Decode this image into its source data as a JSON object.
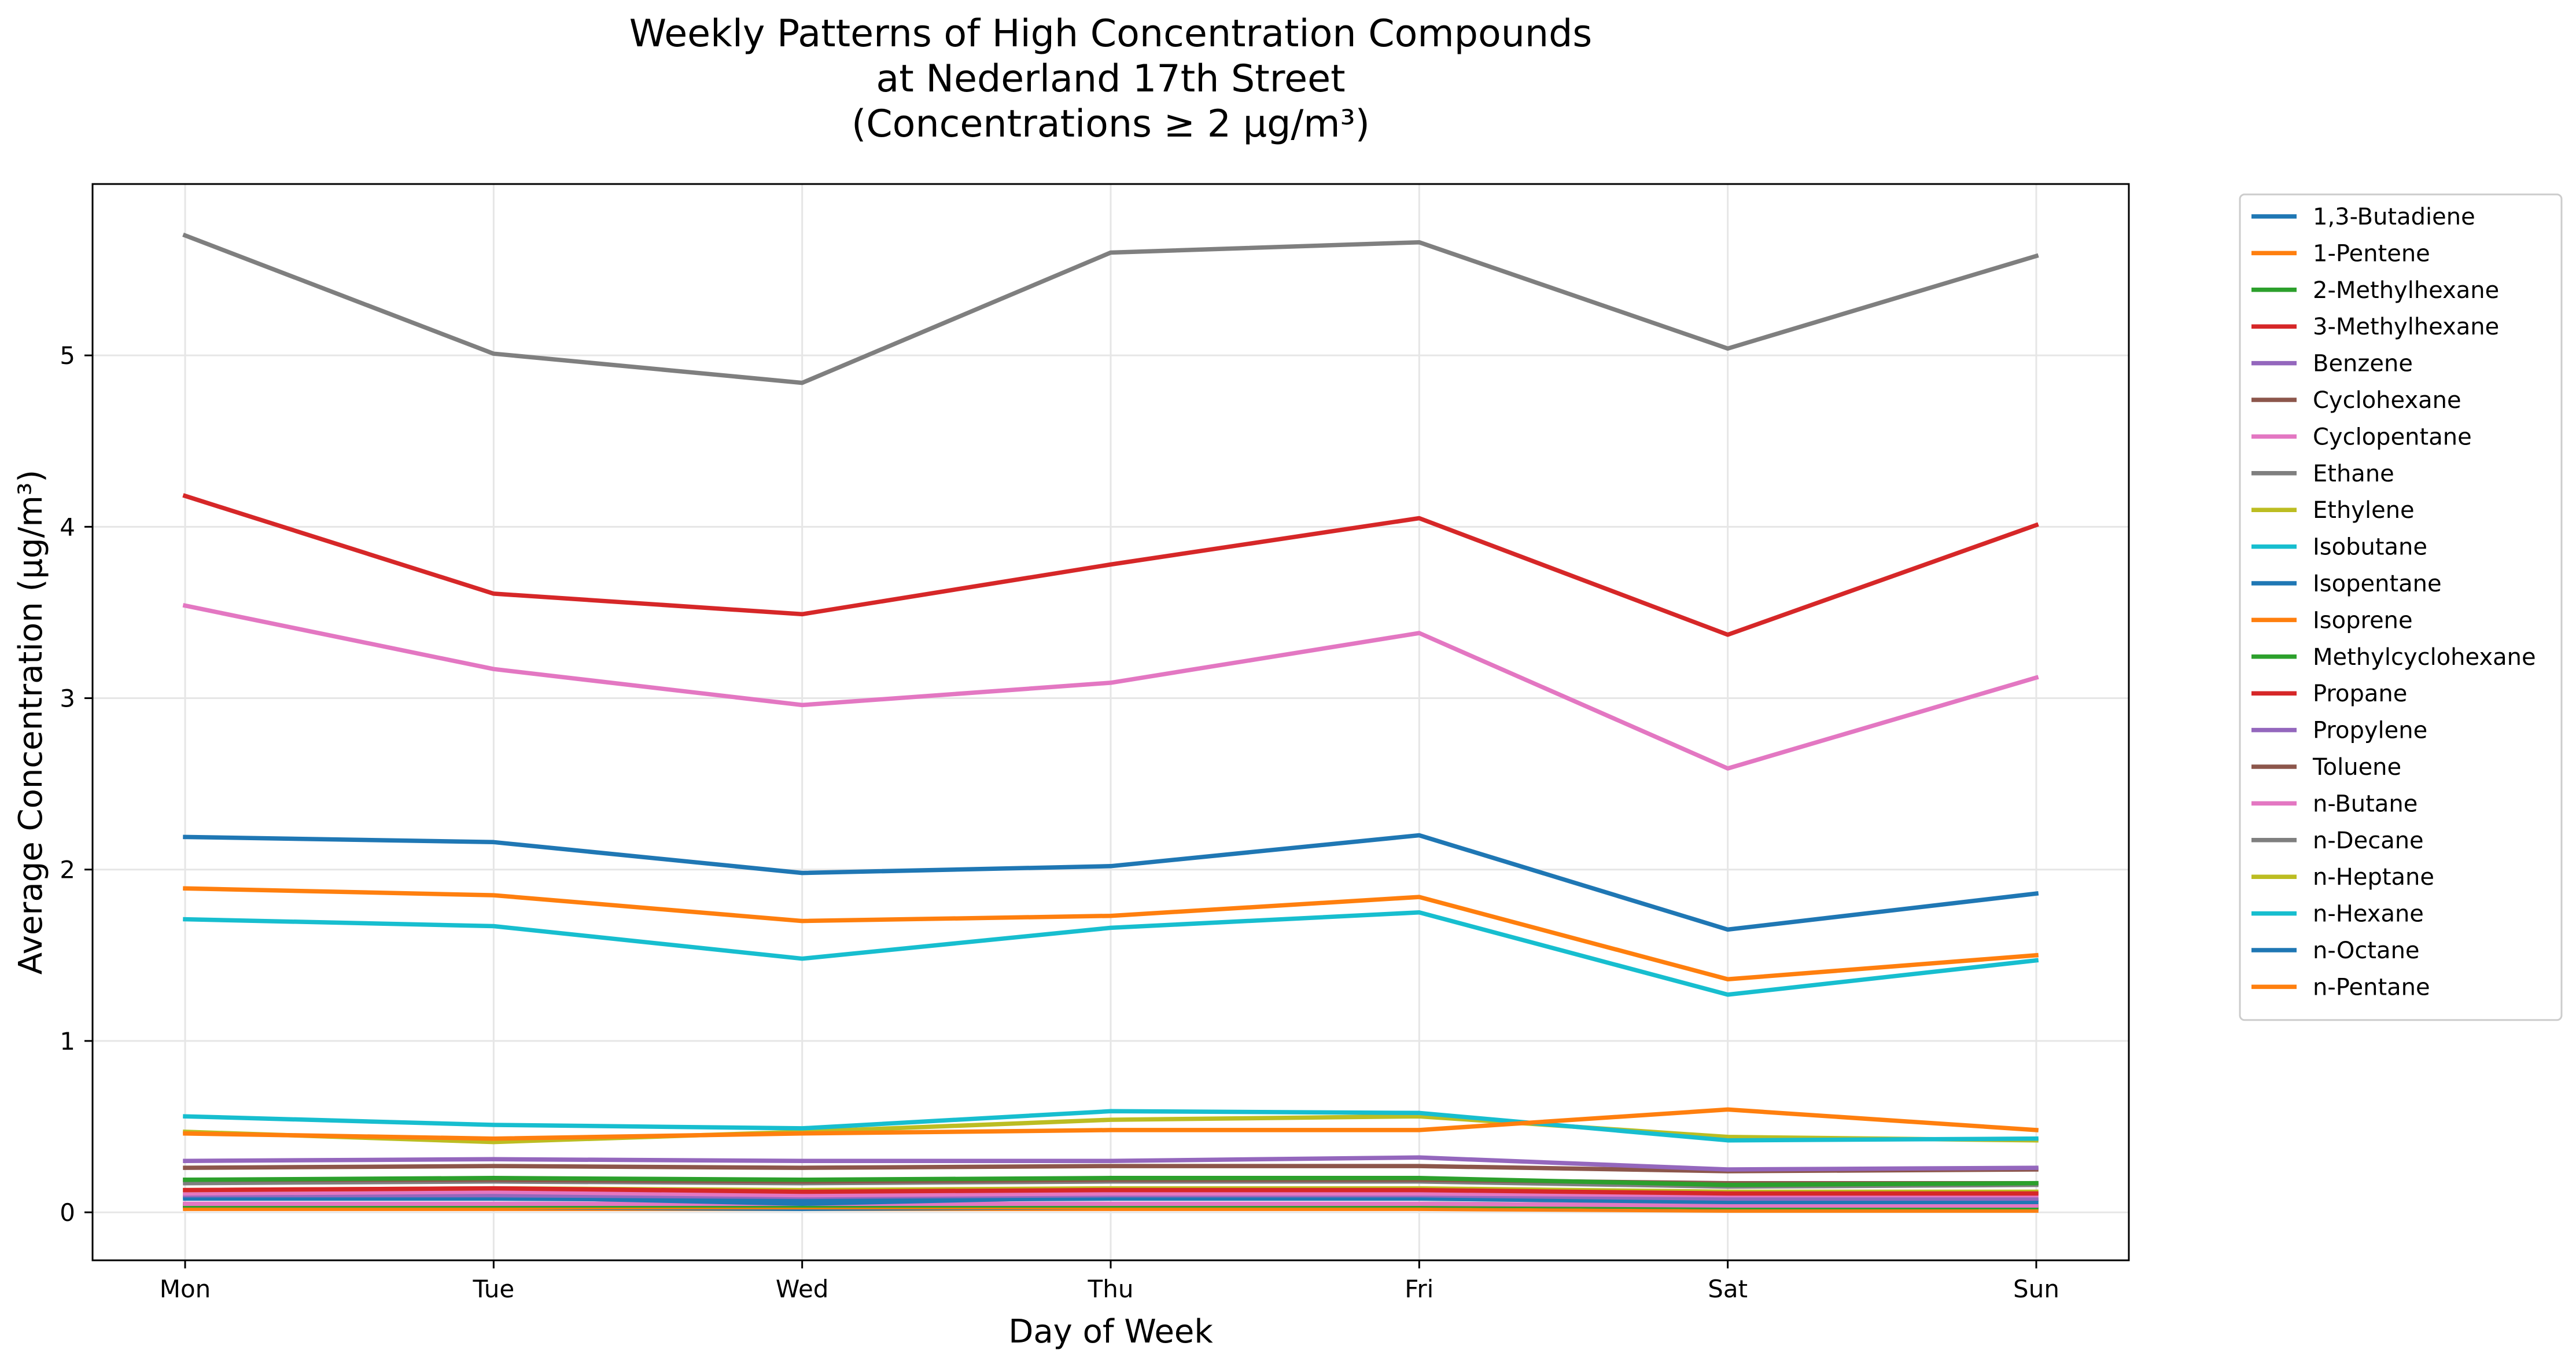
{
  "chart_data": {
    "type": "line",
    "title_lines": [
      "Weekly Patterns of High Concentration Compounds",
      "at Nederland 17th Street",
      "(Concentrations ≥ 2 μg/m³)"
    ],
    "xlabel": "Day of Week",
    "ylabel": "Average Concentration (μg/m³)",
    "categories": [
      "Mon",
      "Tue",
      "Wed",
      "Thu",
      "Fri",
      "Sat",
      "Sun"
    ],
    "ylim": [
      -0.28,
      6.0
    ],
    "yticks": [
      0,
      1,
      2,
      3,
      4,
      5
    ],
    "grid": true,
    "legend_position": "outside-right",
    "series": [
      {
        "name": "1,3-Butadiene",
        "color": "#1f77b4",
        "values": [
          0.03,
          0.03,
          0.02,
          0.03,
          0.03,
          0.02,
          0.02
        ]
      },
      {
        "name": "1-Pentene",
        "color": "#ff7f0e",
        "values": [
          0.03,
          0.03,
          0.03,
          0.03,
          0.03,
          0.02,
          0.02
        ]
      },
      {
        "name": "2-Methylhexane",
        "color": "#2ca02c",
        "values": [
          0.05,
          0.05,
          0.04,
          0.05,
          0.05,
          0.04,
          0.04
        ]
      },
      {
        "name": "3-Methylhexane",
        "color": "#d62728",
        "values": [
          0.04,
          0.04,
          0.04,
          0.04,
          0.04,
          0.03,
          0.03
        ]
      },
      {
        "name": "Benzene",
        "color": "#9467bd",
        "values": [
          0.1,
          0.1,
          0.09,
          0.1,
          0.1,
          0.08,
          0.08
        ]
      },
      {
        "name": "Cyclohexane",
        "color": "#8c564b",
        "values": [
          0.04,
          0.04,
          0.04,
          0.04,
          0.04,
          0.03,
          0.03
        ]
      },
      {
        "name": "Cyclopentane",
        "color": "#e377c2",
        "values": [
          0.05,
          0.05,
          0.05,
          0.05,
          0.05,
          0.04,
          0.04
        ]
      },
      {
        "name": "Ethane",
        "color": "#7f7f7f",
        "values": [
          5.7,
          5.01,
          4.84,
          5.6,
          5.66,
          5.04,
          5.58
        ]
      },
      {
        "name": "Ethylene",
        "color": "#bcbd22",
        "values": [
          0.47,
          0.41,
          0.47,
          0.54,
          0.56,
          0.44,
          0.42
        ]
      },
      {
        "name": "Isobutane",
        "color": "#17becf",
        "values": [
          0.56,
          0.51,
          0.49,
          0.59,
          0.58,
          0.42,
          0.43
        ]
      },
      {
        "name": "Isopentane",
        "color": "#1f77b4",
        "values": [
          2.19,
          2.16,
          1.98,
          2.02,
          2.2,
          1.65,
          1.86
        ]
      },
      {
        "name": "Isoprene",
        "color": "#ff7f0e",
        "values": [
          0.02,
          0.02,
          0.02,
          0.02,
          0.02,
          0.01,
          0.01
        ]
      },
      {
        "name": "Methylcyclohexane",
        "color": "#2ca02c",
        "values": [
          0.04,
          0.04,
          0.04,
          0.04,
          0.04,
          0.03,
          0.03
        ]
      },
      {
        "name": "Propane",
        "color": "#d62728",
        "values": [
          4.18,
          3.61,
          3.49,
          3.78,
          4.05,
          3.37,
          4.01
        ]
      },
      {
        "name": "Propylene",
        "color": "#9467bd",
        "values": [
          0.3,
          0.31,
          0.3,
          0.3,
          0.32,
          0.25,
          0.26
        ]
      },
      {
        "name": "Toluene",
        "color": "#8c564b",
        "values": [
          0.26,
          0.27,
          0.26,
          0.27,
          0.27,
          0.24,
          0.25
        ]
      },
      {
        "name": "n-Butane",
        "color": "#e377c2",
        "values": [
          3.54,
          3.17,
          2.96,
          3.09,
          3.38,
          2.59,
          3.12
        ]
      },
      {
        "name": "n-Decane",
        "color": "#7f7f7f",
        "values": [
          0.17,
          0.18,
          0.17,
          0.18,
          0.18,
          0.15,
          0.16
        ]
      },
      {
        "name": "n-Heptane",
        "color": "#bcbd22",
        "values": [
          0.13,
          0.14,
          0.13,
          0.14,
          0.14,
          0.12,
          0.12
        ]
      },
      {
        "name": "n-Hexane",
        "color": "#17becf",
        "values": [
          1.71,
          1.67,
          1.48,
          1.66,
          1.75,
          1.27,
          1.47
        ]
      },
      {
        "name": "n-Octane",
        "color": "#1f77b4",
        "values": [
          0.08,
          0.08,
          0.07,
          0.08,
          0.08,
          0.06,
          0.06
        ]
      },
      {
        "name": "n-Pentane",
        "color": "#ff7f0e",
        "values": [
          1.89,
          1.85,
          1.7,
          1.73,
          1.84,
          1.36,
          1.5
        ]
      },
      {
        "name": "",
        "color": "#ff7f0e",
        "values": [
          0.46,
          0.43,
          0.46,
          0.48,
          0.48,
          0.6,
          0.48
        ]
      },
      {
        "name": "",
        "color": "#2ca02c",
        "values": [
          0.19,
          0.2,
          0.19,
          0.2,
          0.2,
          0.16,
          0.17
        ]
      },
      {
        "name": "",
        "color": "#8c564b",
        "values": [
          0.19,
          0.19,
          0.18,
          0.19,
          0.19,
          0.17,
          0.17
        ]
      },
      {
        "name": "",
        "color": "#d62728",
        "values": [
          0.13,
          0.14,
          0.12,
          0.13,
          0.13,
          0.11,
          0.11
        ]
      },
      {
        "name": "",
        "color": "#e377c2",
        "values": [
          0.11,
          0.12,
          0.1,
          0.11,
          0.11,
          0.1,
          0.1
        ]
      },
      {
        "name": "",
        "color": "#1f77b4",
        "values": [
          0.09,
          0.09,
          0.05,
          0.09,
          0.09,
          0.07,
          0.07
        ]
      }
    ]
  }
}
